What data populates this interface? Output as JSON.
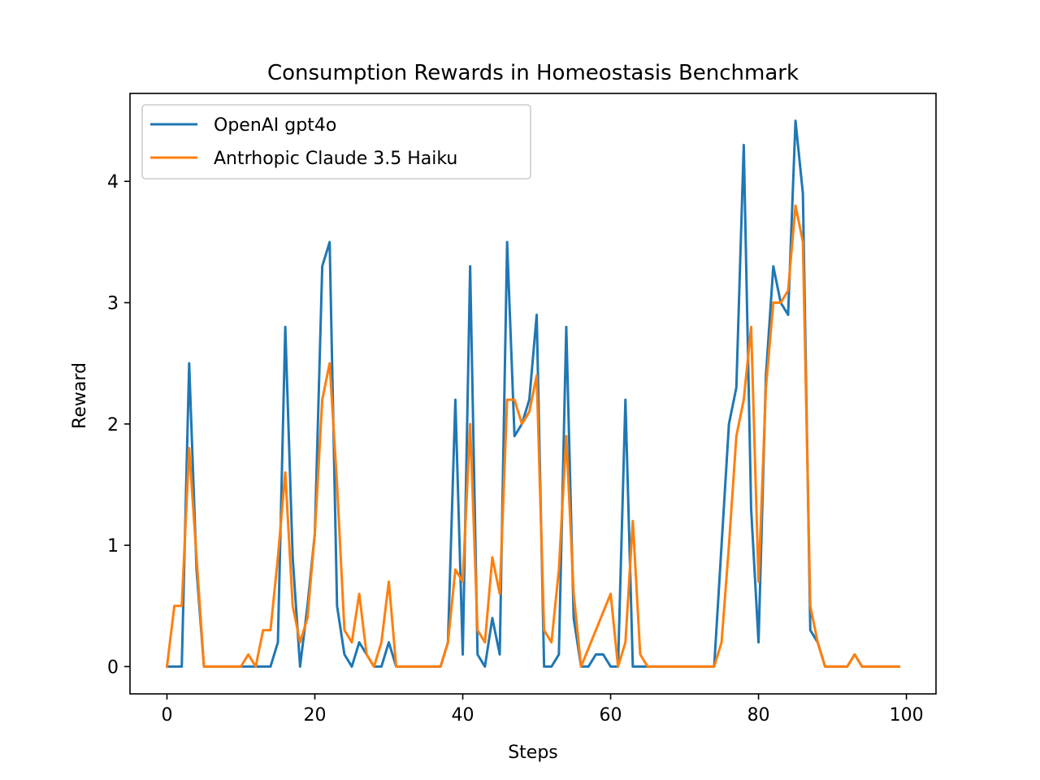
{
  "chart_data": {
    "type": "line",
    "title": "Consumption Rewards in Homeostasis Benchmark",
    "xlabel": "Steps",
    "ylabel": "Reward",
    "xlim": [
      -5,
      104
    ],
    "ylim": [
      -0.225,
      4.725
    ],
    "xticks": [
      0,
      20,
      40,
      60,
      80,
      100
    ],
    "yticks": [
      0,
      1,
      2,
      3,
      4
    ],
    "grid": false,
    "legend_position": "top-left",
    "x": [
      0,
      1,
      2,
      3,
      4,
      5,
      6,
      7,
      8,
      9,
      10,
      11,
      12,
      13,
      14,
      15,
      16,
      17,
      18,
      19,
      20,
      21,
      22,
      23,
      24,
      25,
      26,
      27,
      28,
      29,
      30,
      31,
      32,
      33,
      34,
      35,
      36,
      37,
      38,
      39,
      40,
      41,
      42,
      43,
      44,
      45,
      46,
      47,
      48,
      49,
      50,
      51,
      52,
      53,
      54,
      55,
      56,
      57,
      58,
      59,
      60,
      61,
      62,
      63,
      64,
      65,
      66,
      67,
      68,
      69,
      70,
      71,
      72,
      73,
      74,
      75,
      76,
      77,
      78,
      79,
      80,
      81,
      82,
      83,
      84,
      85,
      86,
      87,
      88,
      89,
      90,
      91,
      92,
      93,
      94,
      95,
      96,
      97,
      98,
      99
    ],
    "series": [
      {
        "name": "OpenAI gpt4o",
        "color": "#1f77b4",
        "values": [
          0,
          0,
          0,
          2.5,
          0.8,
          0,
          0,
          0,
          0,
          0,
          0,
          0,
          0,
          0,
          0,
          0.2,
          2.8,
          0.9,
          0,
          0.5,
          1.1,
          3.3,
          3.5,
          0.5,
          0.1,
          0,
          0.2,
          0.1,
          0,
          0,
          0.2,
          0,
          0,
          0,
          0,
          0,
          0,
          0,
          0.2,
          2.2,
          0.1,
          3.3,
          0.1,
          0,
          0.4,
          0.1,
          3.5,
          1.9,
          2.0,
          2.2,
          2.9,
          0,
          0,
          0.1,
          2.8,
          0.4,
          0,
          0,
          0.1,
          0.1,
          0,
          0,
          2.2,
          0,
          0,
          0,
          0,
          0,
          0,
          0,
          0,
          0,
          0,
          0,
          0,
          1.0,
          2.0,
          2.3,
          4.3,
          1.3,
          0.2,
          2.4,
          3.3,
          3.0,
          2.9,
          4.5,
          3.9,
          0.3,
          0.2,
          0,
          0,
          0,
          0,
          0.1,
          0,
          0,
          0,
          0,
          0,
          0
        ]
      },
      {
        "name": "Antrhopic Claude 3.5 Haiku",
        "color": "#ff7f0e",
        "values": [
          0,
          0.5,
          0.5,
          1.8,
          0.9,
          0,
          0,
          0,
          0,
          0,
          0,
          0.1,
          0,
          0.3,
          0.3,
          0.9,
          1.6,
          0.5,
          0.2,
          0.4,
          1.1,
          2.2,
          2.5,
          1.5,
          0.3,
          0.2,
          0.6,
          0.1,
          0,
          0.2,
          0.7,
          0,
          0,
          0,
          0,
          0,
          0,
          0,
          0.2,
          0.8,
          0.7,
          2.0,
          0.3,
          0.2,
          0.9,
          0.6,
          2.2,
          2.2,
          2.0,
          2.1,
          2.4,
          0.3,
          0.2,
          0.8,
          1.9,
          0.6,
          0,
          0.15,
          0.3,
          0.45,
          0.6,
          0,
          0.2,
          1.2,
          0.1,
          0,
          0,
          0,
          0,
          0,
          0,
          0,
          0,
          0,
          0,
          0.2,
          1.0,
          1.9,
          2.2,
          2.8,
          0.7,
          2.3,
          3.0,
          3.0,
          3.1,
          3.8,
          3.5,
          0.5,
          0.2,
          0,
          0,
          0,
          0,
          0.1,
          0,
          0,
          0,
          0,
          0,
          0
        ]
      }
    ]
  }
}
